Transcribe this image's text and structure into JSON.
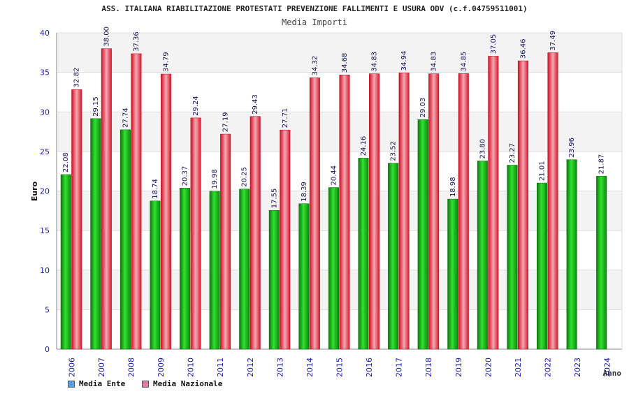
{
  "chart_data": {
    "type": "bar",
    "title": "ASS. ITALIANA RIABILITAZIONE PROTESTATI PREVENZIONE FALLIMENTI E USURA ODV (c.f.04759511001)",
    "subtitle": "Media Importi",
    "xlabel": "Anno",
    "ylabel": "Euro",
    "ylim": [
      0,
      40
    ],
    "yticks": [
      0,
      5,
      10,
      15,
      20,
      25,
      30,
      35,
      40
    ],
    "grid": true,
    "legend_position": "bottom-left",
    "categories": [
      "2006",
      "2007",
      "2008",
      "2009",
      "2010",
      "2011",
      "2012",
      "2013",
      "2014",
      "2015",
      "2016",
      "2017",
      "2018",
      "2019",
      "2020",
      "2021",
      "2022",
      "2023",
      "2024"
    ],
    "series": [
      {
        "name": "Media Ente",
        "color": "#1aaa1a",
        "legend_color": "#5aa0e6",
        "values": [
          22.08,
          29.15,
          27.74,
          18.74,
          20.37,
          19.98,
          20.25,
          17.55,
          18.39,
          20.44,
          24.16,
          23.52,
          29.03,
          18.98,
          23.8,
          23.27,
          21.01,
          23.96,
          21.87
        ],
        "labels": [
          "22.08",
          "29.15",
          "27.74",
          "18.74",
          "20.37",
          "19.98",
          "20.25",
          "17.55",
          "18.39",
          "20.44",
          "24.16",
          "23.52",
          "29.03",
          "18.98",
          "23.80",
          "23.27",
          "21.01",
          "23.96",
          "21.87"
        ]
      },
      {
        "name": "Media Nazionale",
        "color": "#e8283a",
        "legend_color": "#e07aa8",
        "values": [
          32.82,
          38.0,
          37.36,
          34.79,
          29.24,
          27.19,
          29.43,
          27.71,
          34.32,
          34.68,
          34.83,
          34.94,
          34.83,
          34.85,
          37.05,
          36.46,
          37.49,
          null,
          null
        ],
        "labels": [
          "32.82",
          "38.00",
          "37.36",
          "34.79",
          "29.24",
          "27.19",
          "29.43",
          "27.71",
          "34.32",
          "34.68",
          "34.83",
          "34.94",
          "34.83",
          "34.85",
          "37.05",
          "36.46",
          "37.49",
          null,
          null
        ]
      }
    ]
  }
}
